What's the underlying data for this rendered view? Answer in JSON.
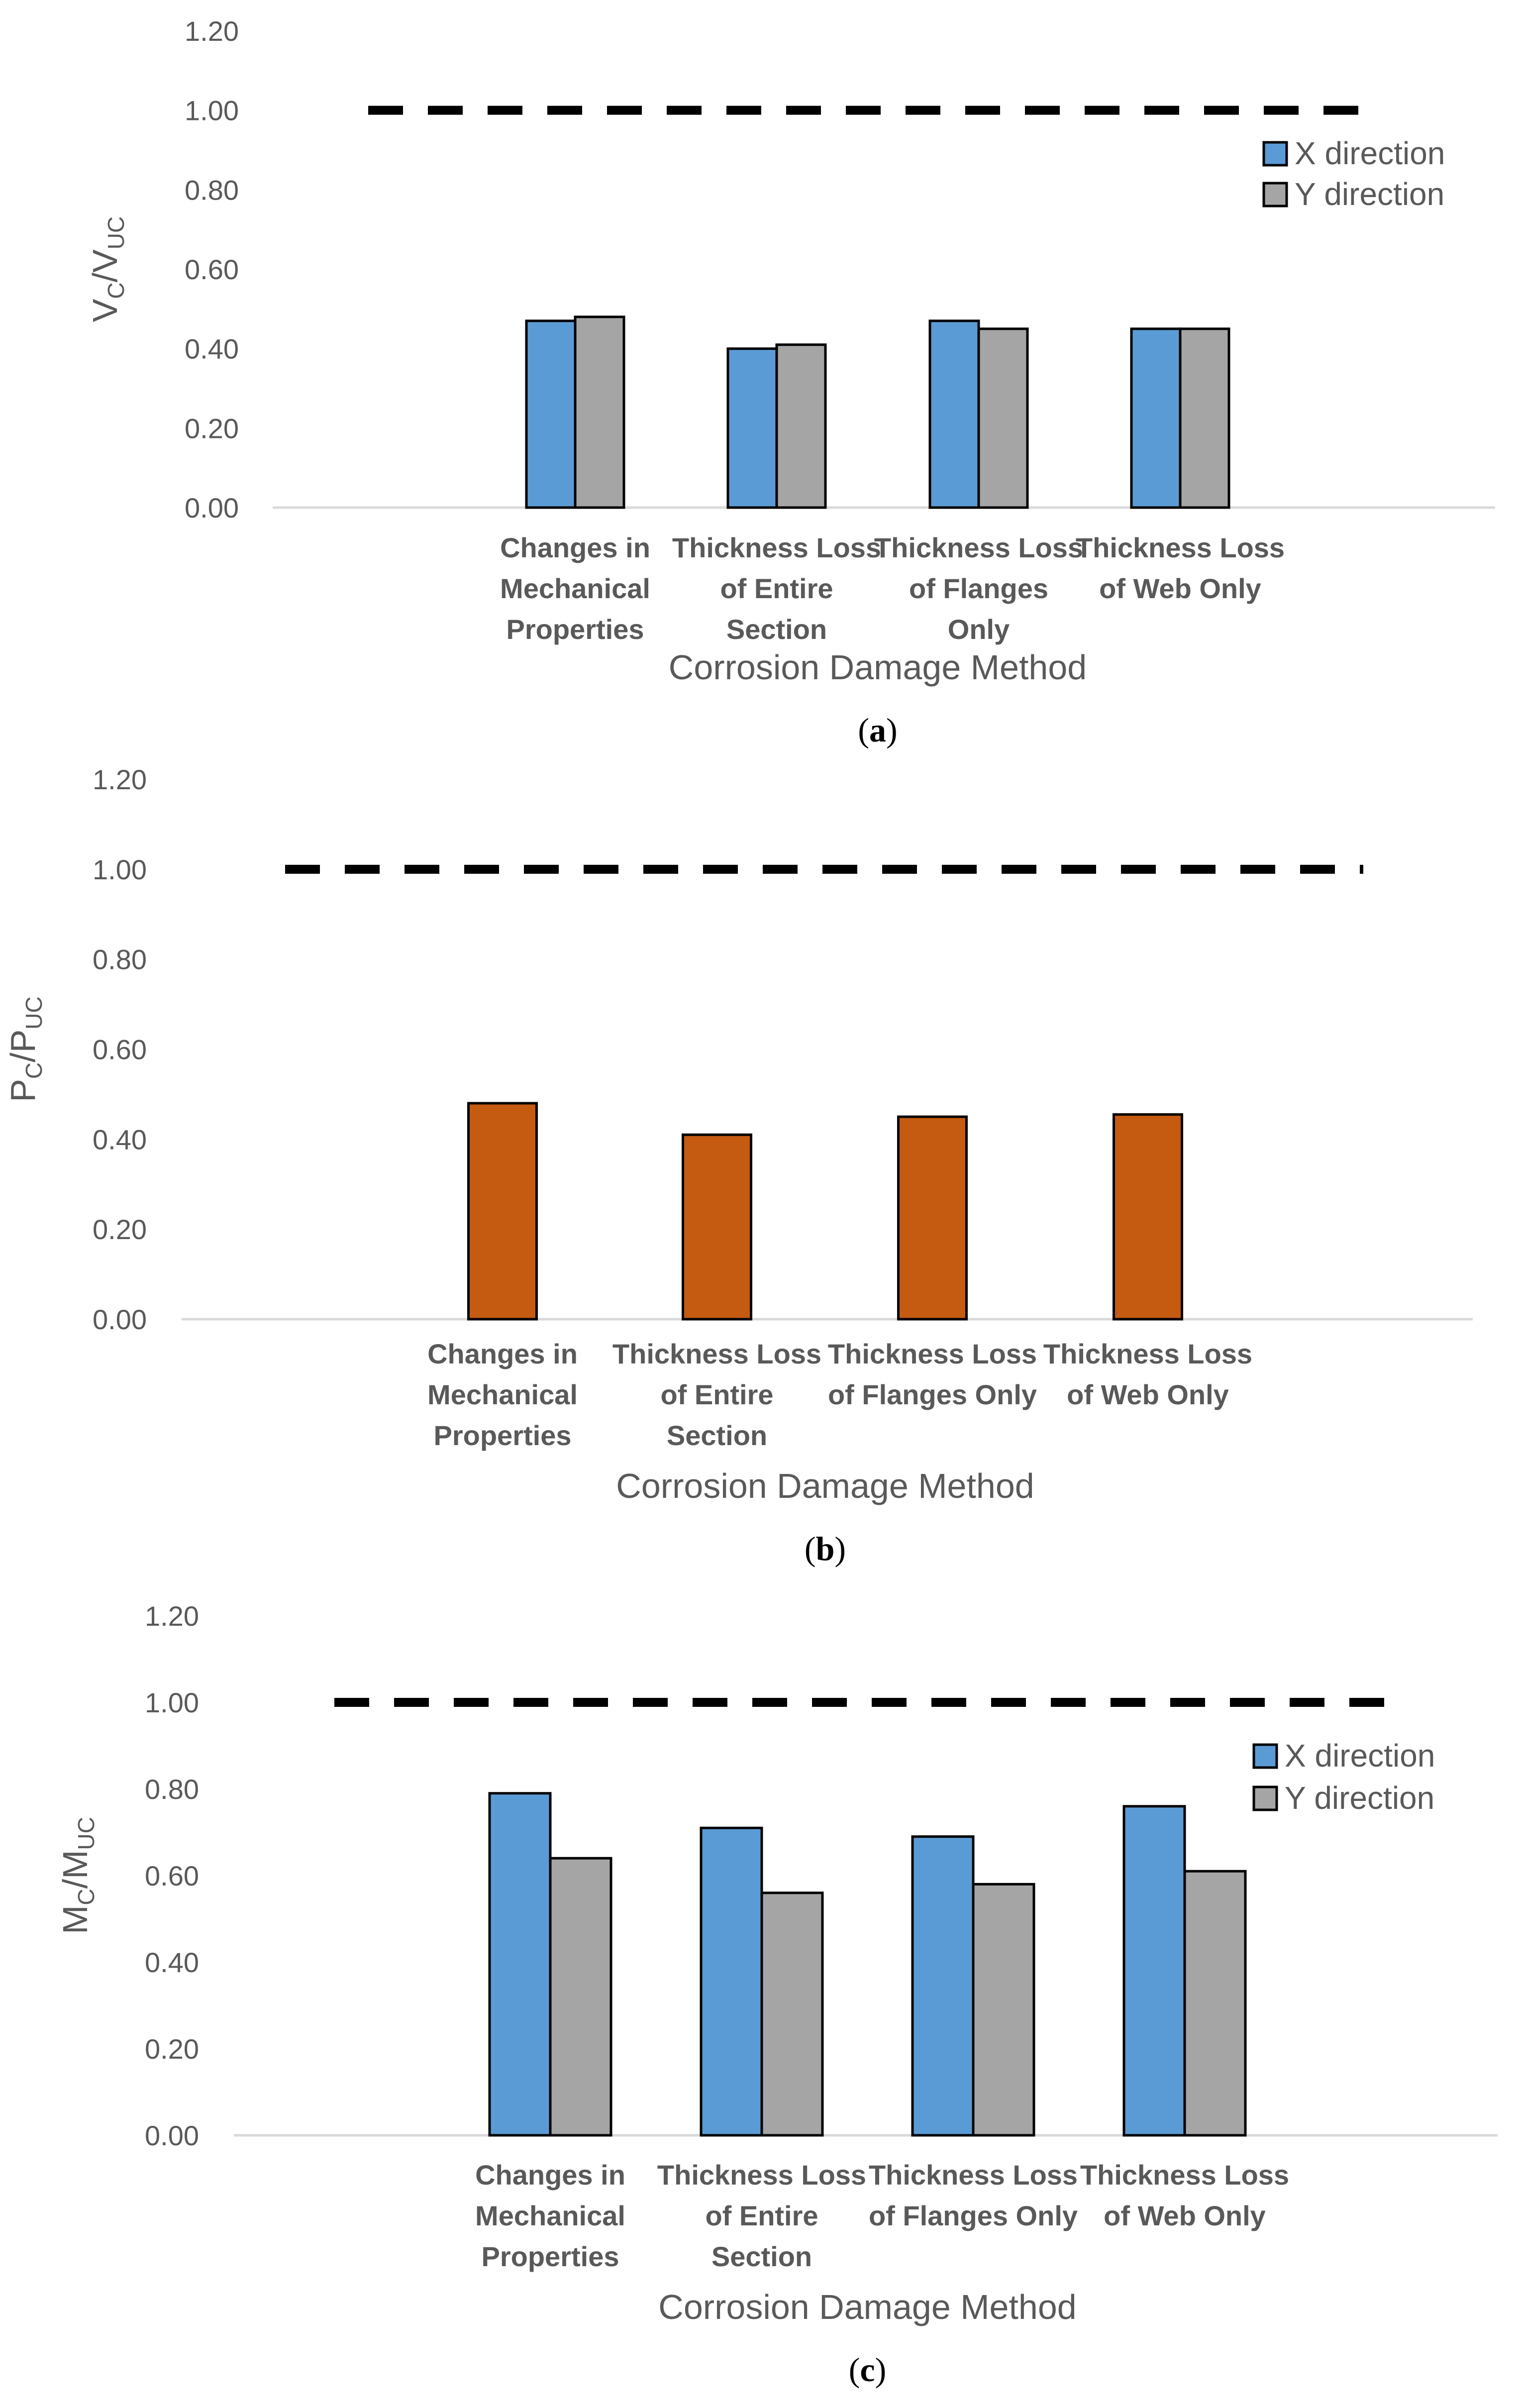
{
  "colors": {
    "x_direction": "#5b9bd5",
    "y_direction": "#a5a5a5",
    "single": "#c55a11",
    "reference_line": "#000000",
    "text": "#595959",
    "axis": "#d9d9d9"
  },
  "chart_data": [
    {
      "type": "bar",
      "panel_label": "a",
      "categories": [
        [
          "Changes in",
          "Mechanical",
          "Properties"
        ],
        [
          "Thickness Loss",
          "of Entire",
          "Section"
        ],
        [
          "Thickness Loss",
          "of Flanges",
          "Only"
        ],
        [
          "Thickness Loss",
          "of Web Only"
        ]
      ],
      "series": [
        {
          "name": "X direction",
          "values": [
            0.47,
            0.4,
            0.47,
            0.45
          ]
        },
        {
          "name": "Y direction",
          "values": [
            0.48,
            0.41,
            0.45,
            0.45
          ]
        }
      ],
      "reference_line": 1.0,
      "ylabel": {
        "main": "V",
        "sub1": "C",
        "slash": "/V",
        "sub2": "UC"
      },
      "xlabel": "Corrosion Damage Method",
      "ylim": [
        0,
        1.2
      ],
      "yticks": [
        "0.00",
        "0.20",
        "0.40",
        "0.60",
        "0.80",
        "1.00",
        "1.20"
      ],
      "legend": "right"
    },
    {
      "type": "bar",
      "panel_label": "b",
      "categories": [
        [
          "Changes in",
          "Mechanical",
          "Properties"
        ],
        [
          "Thickness Loss",
          "of Entire",
          "Section"
        ],
        [
          "Thickness Loss",
          "of Flanges Only"
        ],
        [
          "Thickness Loss",
          "of Web Only"
        ]
      ],
      "series": [
        {
          "name": "",
          "values": [
            0.48,
            0.41,
            0.45,
            0.455
          ]
        }
      ],
      "reference_line": 1.0,
      "ylabel": {
        "main": "P",
        "sub1": "C",
        "slash": "/P",
        "sub2": "UC"
      },
      "xlabel": "Corrosion Damage Method",
      "ylim": [
        0,
        1.2
      ],
      "yticks": [
        "0.00",
        "0.20",
        "0.40",
        "0.60",
        "0.80",
        "1.00",
        "1.20"
      ],
      "legend": "none"
    },
    {
      "type": "bar",
      "panel_label": "c",
      "categories": [
        [
          "Changes in",
          "Mechanical",
          "Properties"
        ],
        [
          "Thickness Loss",
          "of Entire",
          "Section"
        ],
        [
          "Thickness Loss",
          "of Flanges Only"
        ],
        [
          "Thickness Loss",
          "of Web Only"
        ]
      ],
      "series": [
        {
          "name": "X direction",
          "values": [
            0.79,
            0.71,
            0.69,
            0.76
          ]
        },
        {
          "name": "Y direction",
          "values": [
            0.64,
            0.56,
            0.58,
            0.61
          ]
        }
      ],
      "reference_line": 1.0,
      "ylabel": {
        "main": "M",
        "sub1": "C",
        "slash": "/M",
        "sub2": "UC"
      },
      "xlabel": "Corrosion Damage Method",
      "ylim": [
        0,
        1.2
      ],
      "yticks": [
        "0.00",
        "0.20",
        "0.40",
        "0.60",
        "0.80",
        "1.00",
        "1.20"
      ],
      "legend": "right"
    }
  ]
}
